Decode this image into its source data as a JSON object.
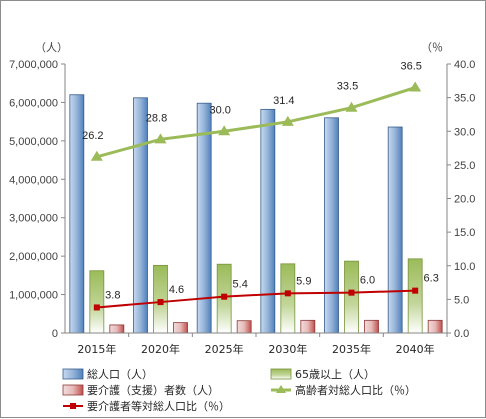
{
  "colors": {
    "population_bar": "#4f81bd",
    "elderly_bar": "#9bbb59",
    "care_bar": "#c0504d",
    "elderly_ratio_line": "#9bbb59",
    "care_ratio_line": "#c00000",
    "axis": "#868686",
    "text": "#404040"
  },
  "chart_data": {
    "type": "bar",
    "categories": [
      "2015年",
      "2020年",
      "2025年",
      "2030年",
      "2035年",
      "2040年"
    ],
    "left_axis": {
      "unit": "（人）",
      "ylim": [
        0,
        7000000
      ],
      "ticks": [
        "0",
        "1,000,000",
        "2,000,000",
        "3,000,000",
        "4,000,000",
        "5,000,000",
        "6,000,000",
        "7,000,000"
      ]
    },
    "right_axis": {
      "unit": "（％",
      "ylim": [
        0,
        40
      ],
      "ticks": [
        "0.0",
        "5.0",
        "10.0",
        "15.0",
        "20.0",
        "25.0",
        "30.0",
        "35.0",
        "40.0"
      ]
    },
    "grid": false,
    "legend_position": "bottom",
    "series": [
      {
        "name": "総人口（人）",
        "type": "bar",
        "axis": "left",
        "values": [
          6200000,
          6120000,
          5980000,
          5820000,
          5600000,
          5360000
        ]
      },
      {
        "name": "65歳以上（人）",
        "type": "bar",
        "axis": "left",
        "values": [
          1620000,
          1760000,
          1790000,
          1800000,
          1870000,
          1930000
        ]
      },
      {
        "name": "要介護（支援）者数（人）",
        "type": "bar",
        "axis": "left",
        "values": [
          210000,
          270000,
          320000,
          330000,
          330000,
          330000
        ]
      },
      {
        "name": "高齢者対総人口比（％）",
        "type": "line",
        "axis": "right",
        "values": [
          26.2,
          28.8,
          30.0,
          31.4,
          33.5,
          36.5
        ],
        "labels": [
          "26.2",
          "28.8",
          "30.0",
          "31.4",
          "33.5",
          "36.5"
        ]
      },
      {
        "name": "要介護者等対総人口比（％）",
        "type": "line",
        "axis": "right",
        "values": [
          3.8,
          4.6,
          5.4,
          5.9,
          6.0,
          6.3
        ],
        "labels": [
          "3.8",
          "4.6",
          "5.4",
          "5.9",
          "6.0",
          "6.3"
        ]
      }
    ]
  }
}
